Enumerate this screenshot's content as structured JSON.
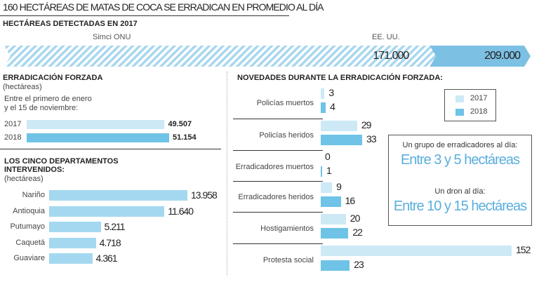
{
  "title": "160 HECTÁREAS DE MATAS DE COCA SE ERRADICAN EN PROMEDIO AL DÍA",
  "colors": {
    "light_blue": "#cde9f6",
    "mid_blue": "#6ec3e6",
    "top_bar_blue": "#7cc0e4",
    "stripe_light": "#b6def2",
    "accent_text": "#5aaedd"
  },
  "chart_data": [
    {
      "type": "bar",
      "title": "HECTÁREAS DETECTADAS EN 2017",
      "categories": [
        "Simci ONU",
        "EE. UU."
      ],
      "values": [
        171000,
        209000
      ],
      "value_labels": [
        "171.000",
        "209.000"
      ],
      "orientation": "horizontal-overlapping"
    },
    {
      "type": "bar",
      "title": "ERRADICACIÓN FORZADA",
      "unit": "(hectáreas)",
      "note": "Entre el primero de enero y el 15 de noviembre:",
      "note_lines": [
        "Entre el primero de enero",
        "y el 15 de noviembre:"
      ],
      "categories": [
        "2017",
        "2018"
      ],
      "values": [
        49507,
        51154
      ],
      "value_labels": [
        "49.507",
        "51.154"
      ],
      "colors": [
        "#cde9f6",
        "#6ec3e6"
      ]
    },
    {
      "type": "bar",
      "title_lines": [
        "LOS CINCO DEPARTAMENTOS",
        "INTERVENIDOS:"
      ],
      "unit": "(hectáreas)",
      "categories": [
        "Nariño",
        "Antioquia",
        "Putumayo",
        "Caquetá",
        "Guaviare"
      ],
      "values": [
        13958,
        11640,
        5211,
        4718,
        4361
      ],
      "value_labels": [
        "13.958",
        "11.640",
        "5.211",
        "4.718",
        "4.361"
      ],
      "color": "#a4d8f0"
    },
    {
      "type": "bar",
      "title": "NOVEDADES DURANTE LA ERRADICACIÓN FORZADA:",
      "categories": [
        "Policías muertos",
        "Policías heridos",
        "Erradicadores muertos",
        "Erradicadores heridos",
        "Hostigamientos",
        "Protesta social"
      ],
      "series": [
        {
          "name": "2017",
          "values": [
            3,
            29,
            0,
            9,
            20,
            152
          ],
          "color": "#cde9f6"
        },
        {
          "name": "2018",
          "values": [
            4,
            33,
            1,
            16,
            22,
            23
          ],
          "color": "#6ec3e6"
        }
      ],
      "legend": {
        "items": [
          "2017",
          "2018"
        ],
        "placement": "top-right"
      }
    }
  ],
  "info_box": {
    "line1": "Un grupo de erradicadores al día:",
    "big1": "Entre 3 y 5 hectáreas",
    "line2": "Un dron al día:",
    "big2": "Entre 10 y 15 hectáreas"
  }
}
